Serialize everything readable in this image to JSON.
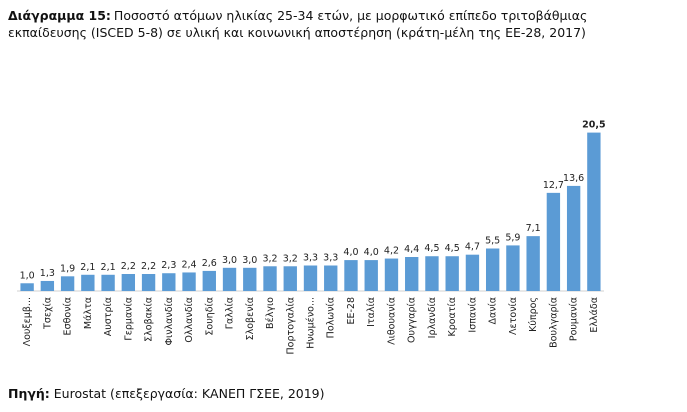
{
  "chart_data": {
    "type": "bar",
    "title_label": "Διάγραμμα 15:",
    "title": [
      "Ποσοστό ατόμων ηλικίας 25-34 ετών, με μορφωτικό επίπεδο τριτοβάθμιας",
      "εκπαίδευσης (ISCED 5-8) σε υλική και κοινωνική αποστέρηση (κράτη-μέλη της ΕΕ-28, 2017)"
    ],
    "categories": [
      "Λουξεμβ...",
      "Τσεχία",
      "Εσθονία",
      "Μάλτα",
      "Αυστρία",
      "Γερμανία",
      "Σλοβακία",
      "Φινλανδία",
      "Ολλανδία",
      "Σουηδία",
      "Γαλλία",
      "Σλοβενία",
      "Βέλγιο",
      "Πορτογαλία",
      "Ηνωμένο...",
      "Πολωνία",
      "ΕΕ-28",
      "Ιταλία",
      "Λιθουανία",
      "Ουγγαρία",
      "Ιρλανδία",
      "Κροατία",
      "Ισπανία",
      "Δανία",
      "Λετονία",
      "Κύπρος",
      "Βουλγαρία",
      "Ρουμανία",
      "Ελλάδα"
    ],
    "values": [
      1.0,
      1.3,
      1.9,
      2.1,
      2.1,
      2.2,
      2.2,
      2.3,
      2.4,
      2.6,
      3.0,
      3.0,
      3.2,
      3.2,
      3.3,
      3.3,
      4.0,
      4.0,
      4.2,
      4.4,
      4.5,
      4.5,
      4.7,
      5.5,
      5.9,
      7.1,
      12.7,
      13.6,
      20.5
    ],
    "value_labels": [
      "1,0",
      "1,3",
      "1,9",
      "2,1",
      "2,1",
      "2,2",
      "2,2",
      "2,3",
      "2,4",
      "2,6",
      "3,0",
      "3,0",
      "3,2",
      "3,2",
      "3,3",
      "3,3",
      "4,0",
      "4,0",
      "4,2",
      "4,4",
      "4,5",
      "4,5",
      "4,7",
      "5,5",
      "5,9",
      "7,1",
      "12,7",
      "13,6",
      "20,5"
    ],
    "color": "#5b9bd5",
    "ylim": [
      0,
      22
    ],
    "source_label": "Πηγή:",
    "source": "Eurostat (επεξεργασία: ΚΑΝΕΠ ΓΣΕΕ, 2019)"
  }
}
